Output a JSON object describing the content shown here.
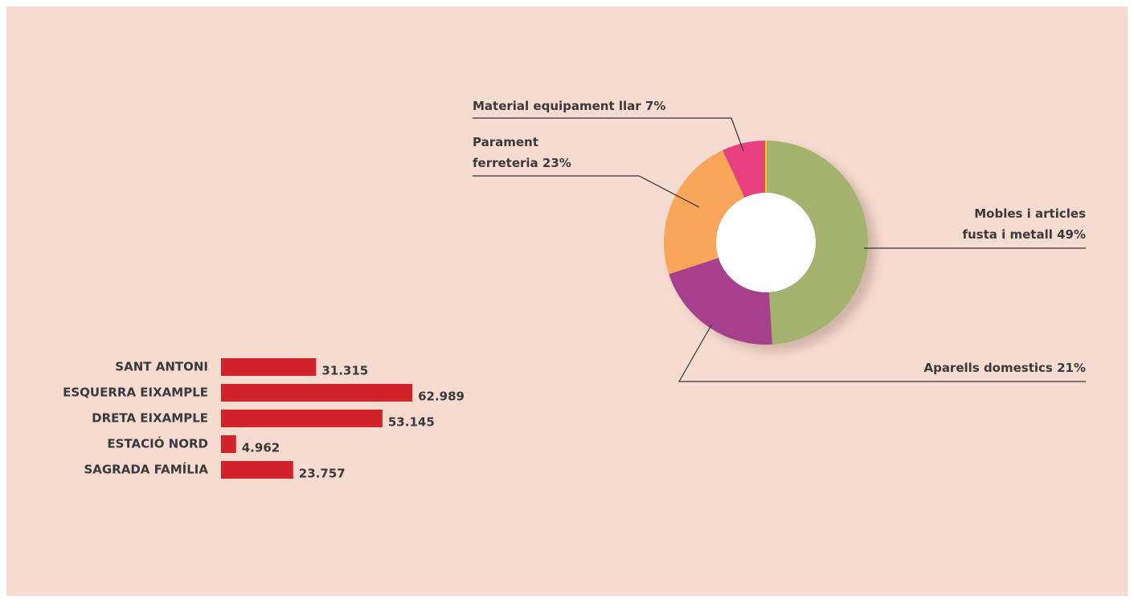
{
  "chart_data": [
    {
      "type": "pie",
      "categories": [
        [
          "Mobles i articles",
          "fusta i metall"
        ],
        [
          "Aparells domestics"
        ],
        [
          "Parament",
          "ferreteria"
        ],
        [
          "Material equipament llar"
        ]
      ],
      "values": [
        49,
        21,
        23,
        7
      ],
      "value_labels": [
        "49%",
        "21%",
        "23%",
        "7%"
      ],
      "colors": [
        "#a3b36d",
        "#a63f8c",
        "#f7a65a",
        "#e8407f"
      ]
    },
    {
      "type": "hbar",
      "categories": [
        "SANT ANTONI",
        "ESQUERRA EIXAMPLE",
        "DRETA EIXAMPLE",
        "ESTACIÓ NORD",
        "SAGRADA FAMÍLIA"
      ],
      "values": [
        31315,
        62989,
        53145,
        4962,
        23757
      ],
      "value_labels": [
        "31.315",
        "62.989",
        "53.145",
        "4.962",
        "23.757"
      ],
      "color": "#d2232a"
    }
  ]
}
